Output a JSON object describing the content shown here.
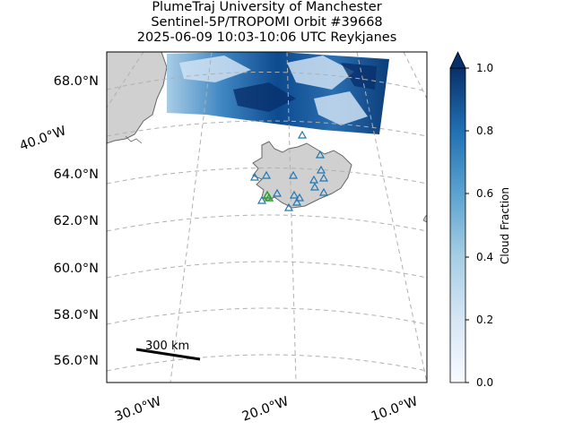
{
  "title": {
    "line1": "PlumeTraj    University of Manchester",
    "line2": "Sentinel-5P/TROPOMI Orbit #39668",
    "line3": "2025-06-09   10:03-10:06 UTC   Reykjanes"
  },
  "map": {
    "lat_labels": [
      "68.0°N",
      "64.0°N",
      "62.0°N",
      "60.0°N",
      "58.0°N",
      "56.0°N"
    ],
    "lon_labels": [
      "30.0°W",
      "20.0°W",
      "10.0°W"
    ],
    "extra_label": "40.0°W",
    "scale_bar_label": "300 km",
    "land_color": "#d0d0d0",
    "coast_color": "#666666",
    "grid_color": "#b0b0b0",
    "volcano_marker_color": "#1f77b4",
    "source_marker_color": "#2ca02c"
  },
  "colorbar": {
    "label": "Cloud Fraction",
    "ticks": [
      "0.0",
      "0.2",
      "0.4",
      "0.6",
      "0.8",
      "1.0"
    ],
    "colormap": "Blues"
  }
}
